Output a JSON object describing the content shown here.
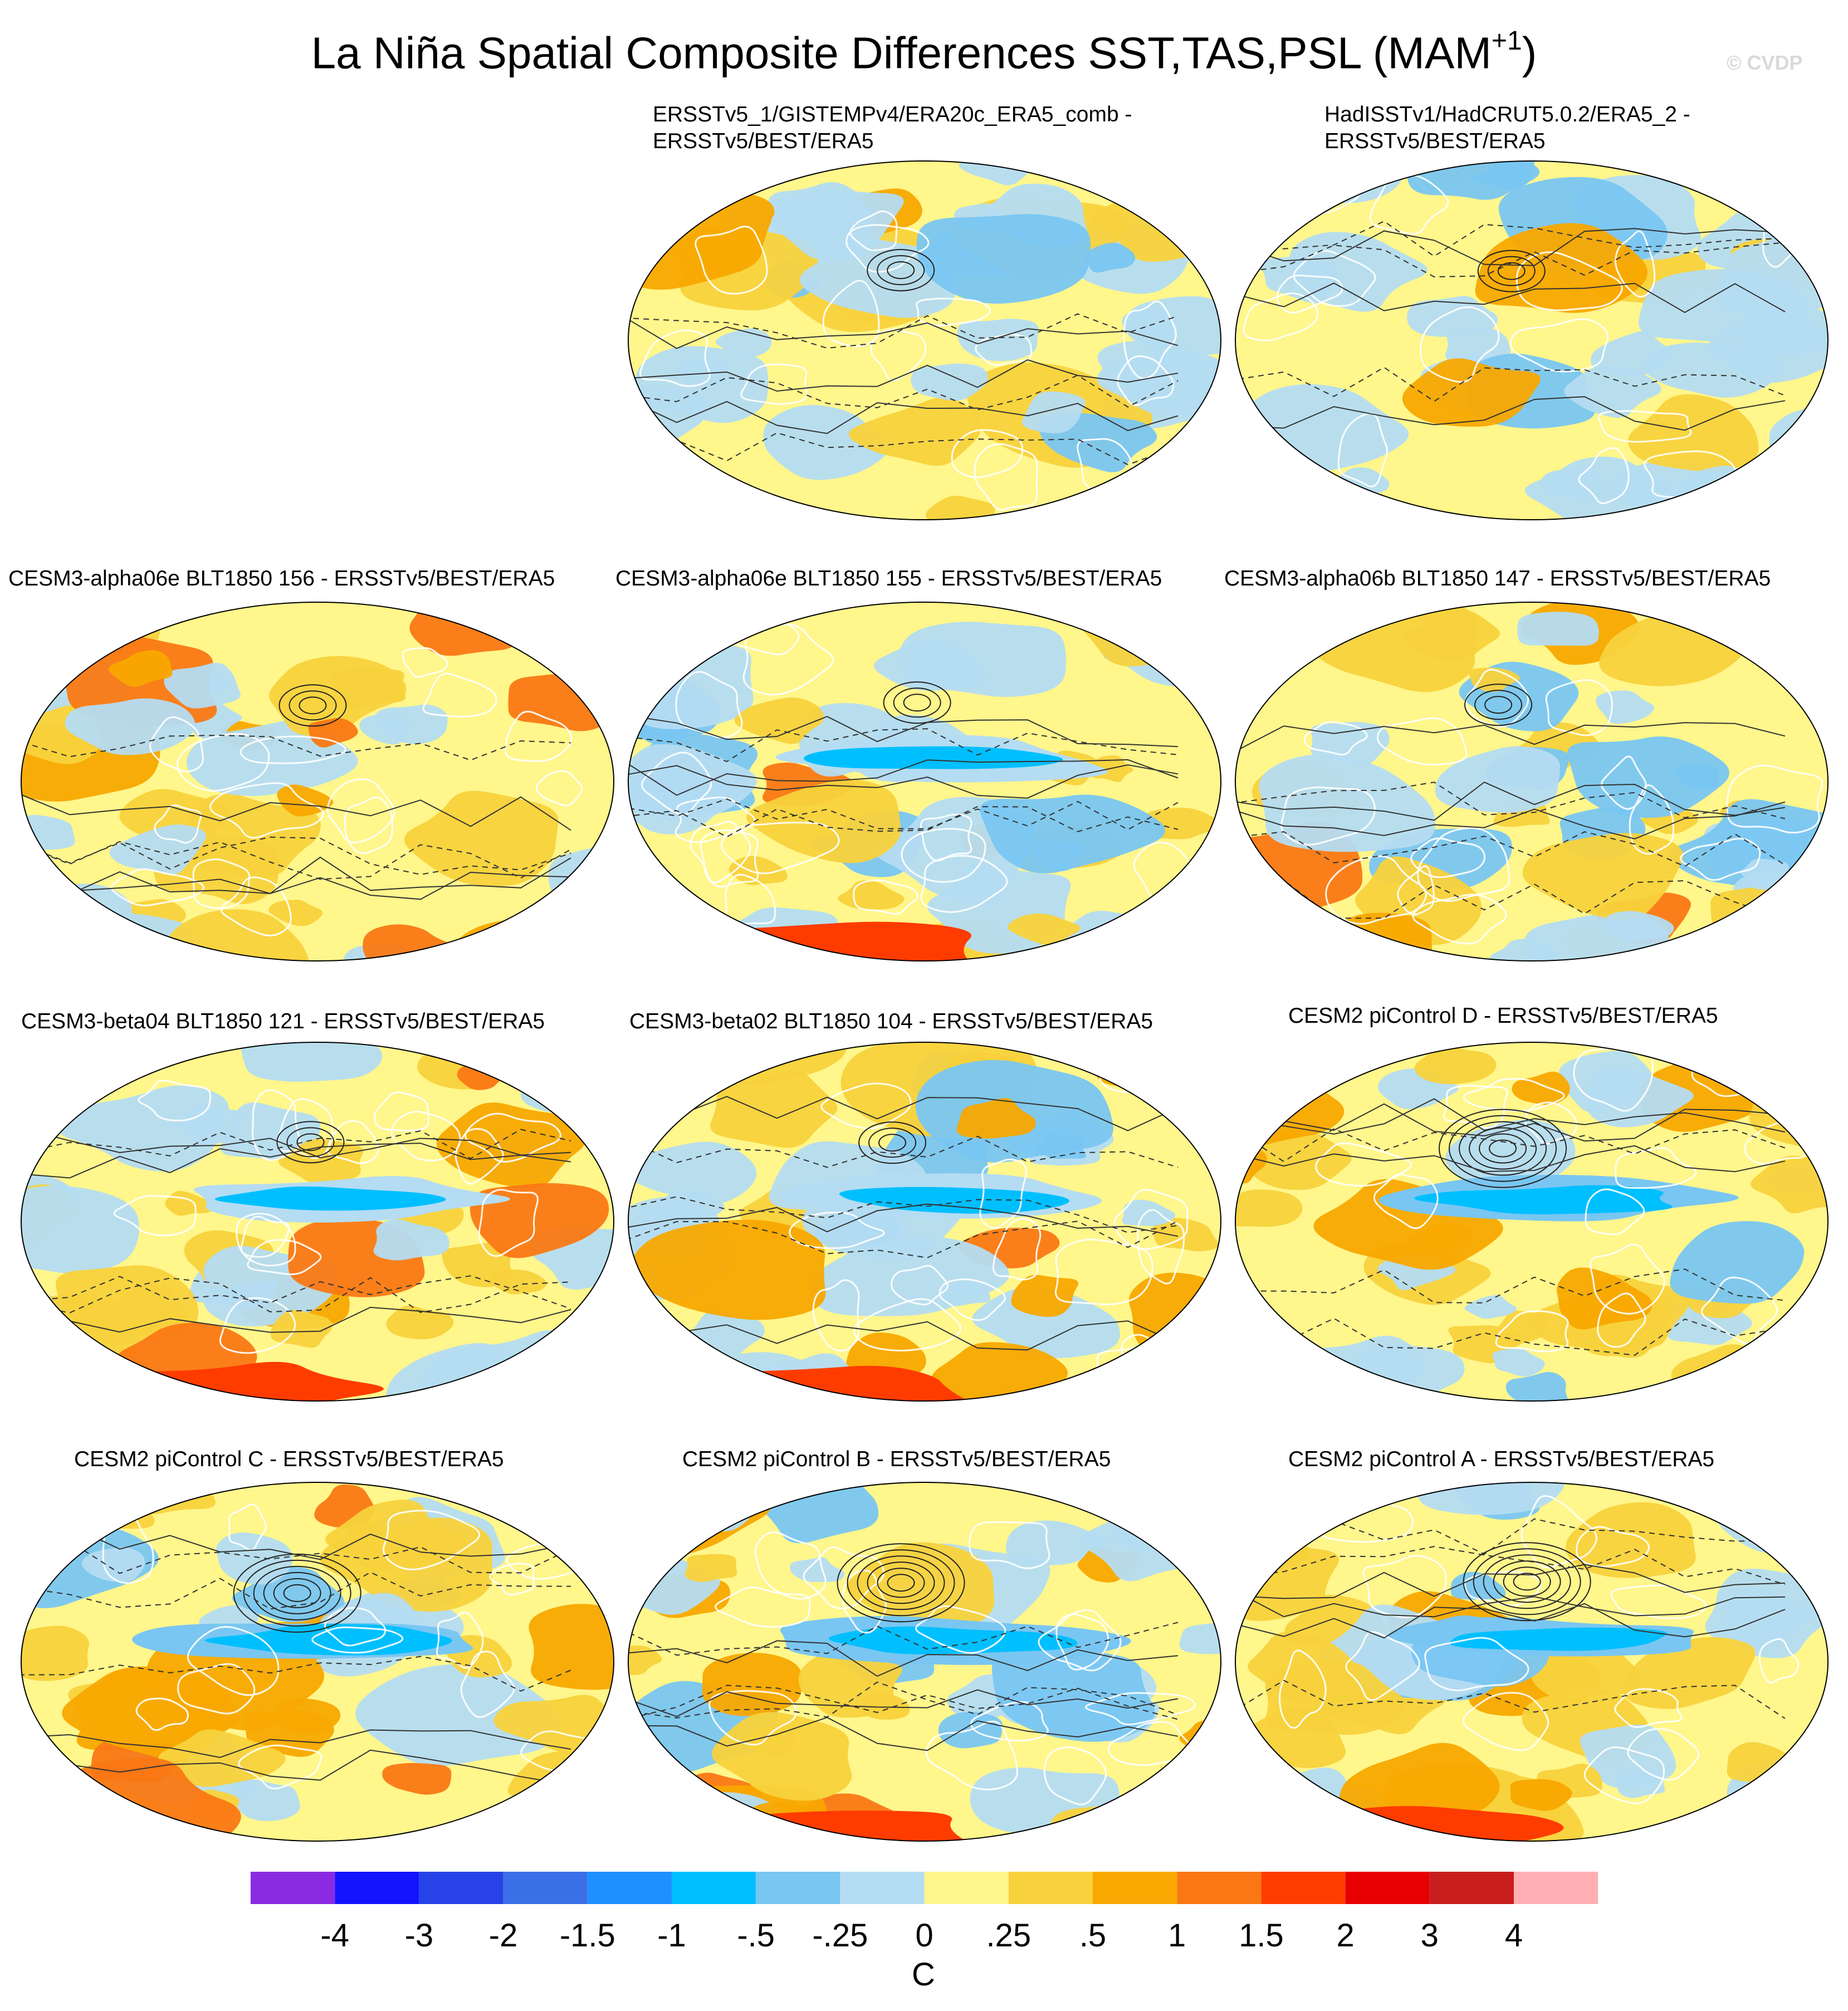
{
  "figure": {
    "title_main": "La Niña Spatial Composite Differences SST,TAS,PSL (MAM",
    "title_sup": "+1",
    "title_end": ")",
    "watermark": "© CVDP"
  },
  "panels": [
    {
      "lines": [
        "ERSSTv5_1/GISTEMPv4/ERA20c_ERA5_comb -",
        "ERSSTv5/BEST/ERA5"
      ],
      "pattern": 1,
      "seed": 11
    },
    {
      "lines": [
        "HadISSTv1/HadCRUT5.0.2/ERA5_2 -",
        "ERSSTv5/BEST/ERA5"
      ],
      "pattern": 1,
      "seed": 23
    },
    {
      "lines": [
        "CESM3-alpha06e BLT1850 156 - ERSSTv5/BEST/ERA5"
      ],
      "pattern": 2,
      "seed": 37
    },
    {
      "lines": [
        "CESM3-alpha06e BLT1850 155 - ERSSTv5/BEST/ERA5"
      ],
      "pattern": 3,
      "seed": 41
    },
    {
      "lines": [
        "CESM3-alpha06b BLT1850 147 - ERSSTv5/BEST/ERA5"
      ],
      "pattern": 2,
      "seed": 53
    },
    {
      "lines": [
        "CESM3-beta04 BLT1850 121 - ERSSTv5/BEST/ERA5"
      ],
      "pattern": 3,
      "seed": 67
    },
    {
      "lines": [
        "CESM3-beta02 BLT1850 104 - ERSSTv5/BEST/ERA5"
      ],
      "pattern": 3,
      "seed": 71
    },
    {
      "lines": [
        "CESM2 piControl D - ERSSTv5/BEST/ERA5"
      ],
      "pattern": 4,
      "seed": 83
    },
    {
      "lines": [
        "CESM2 piControl C - ERSSTv5/BEST/ERA5"
      ],
      "pattern": 4,
      "seed": 97
    },
    {
      "lines": [
        "CESM2 piControl B - ERSSTv5/BEST/ERA5"
      ],
      "pattern": 4,
      "seed": 101
    },
    {
      "lines": [
        "CESM2 piControl A - ERSSTv5/BEST/ERA5"
      ],
      "pattern": 4,
      "seed": 113
    }
  ],
  "colorbar": {
    "units": "C",
    "labels": [
      "-4",
      "-3",
      "-2",
      "-1.5",
      "-1",
      "-.5",
      "-.25",
      "0",
      ".25",
      ".5",
      "1",
      "1.5",
      "2",
      "3",
      "4"
    ],
    "colors": [
      "#8a2be2",
      "#1414ff",
      "#2742e6",
      "#3a6fe8",
      "#1e90ff",
      "#00bfff",
      "#79c6f2",
      "#b4dcf2",
      "#fff68c",
      "#f8d23c",
      "#f8a800",
      "#fa7814",
      "#ff3c00",
      "#e60000",
      "#c81e1e",
      "#ffafb4"
    ]
  }
}
